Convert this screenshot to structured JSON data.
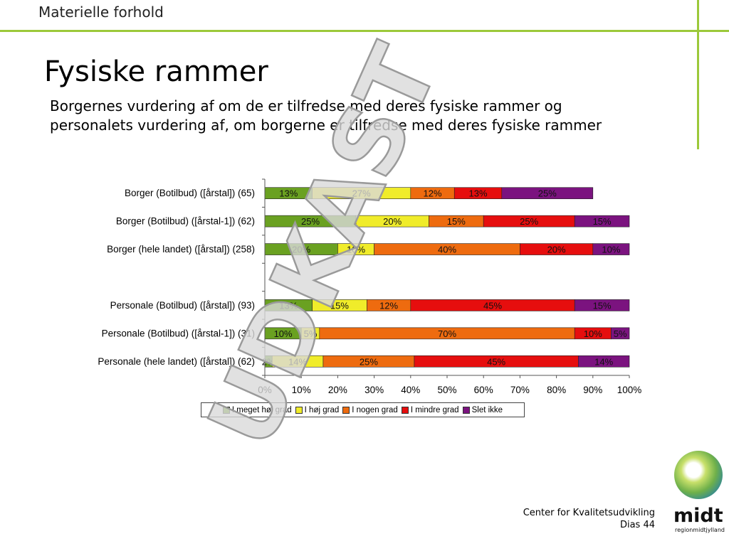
{
  "header": {
    "section": "Materielle forhold"
  },
  "slide": {
    "title": "Fysiske rammer",
    "subtitle_line1": "Borgernes vurdering af om de er tilfredse med deres fysiske rammer og",
    "subtitle_line2": "personalets vurdering af, om borgerne er tilfredse med deres fysiske rammer"
  },
  "watermark": "UDKAST",
  "footer": {
    "org": "Center for Kvalitetsudvikling",
    "page": "Dias 44"
  },
  "logo": {
    "name": "midt",
    "sub": "regionmidtjylland"
  },
  "colors": {
    "accent_line": "#9cc93a"
  },
  "chart_data": {
    "type": "bar",
    "orientation": "horizontal-stacked-100",
    "categories": [
      "Borger (Botilbud) ([årstal]) (65)",
      "Borger (Botilbud) ([årstal-1]) (62)",
      "Borger (hele landet) ([årstal]) (258)",
      "",
      "Personale (Botilbud) ([årstal]) (93)",
      "Personale (Botilbud) ([årstal-1]) (31)",
      "Personale (hele landet) ([årstal]) (62)"
    ],
    "series": [
      {
        "name": "I meget høj grad",
        "color": "#6aa121",
        "values": [
          13,
          25,
          20,
          null,
          13,
          10,
          2
        ],
        "labels": [
          "13%",
          "25%",
          "20%",
          "",
          "13%",
          "10%",
          "2%"
        ]
      },
      {
        "name": "I høj grad",
        "color": "#f0ec2a",
        "values": [
          27,
          20,
          10,
          null,
          15,
          5,
          14
        ],
        "labels": [
          "27%",
          "20%",
          "10%",
          "",
          "15%",
          "5%",
          "14%"
        ]
      },
      {
        "name": "I nogen grad",
        "color": "#ee6b0f",
        "values": [
          12,
          15,
          40,
          null,
          12,
          70,
          25
        ],
        "labels": [
          "12%",
          "15%",
          "40%",
          "",
          "12%",
          "70%",
          "25%"
        ]
      },
      {
        "name": "I mindre grad",
        "color": "#e60e0e",
        "values": [
          13,
          25,
          20,
          null,
          45,
          10,
          45
        ],
        "labels": [
          "13%",
          "25%",
          "20%",
          "",
          "45%",
          "10%",
          "45%"
        ]
      },
      {
        "name": "Slet ikke",
        "color": "#7b137f",
        "values": [
          25,
          15,
          10,
          null,
          15,
          5,
          14
        ],
        "labels": [
          "25%",
          "15%",
          "10%",
          "",
          "15%",
          "5%",
          "14%"
        ]
      }
    ],
    "xlim": [
      0,
      100
    ],
    "xticks": [
      "0%",
      "10%",
      "20%",
      "30%",
      "40%",
      "50%",
      "60%",
      "70%",
      "80%",
      "90%",
      "100%"
    ],
    "legend_position": "bottom"
  }
}
